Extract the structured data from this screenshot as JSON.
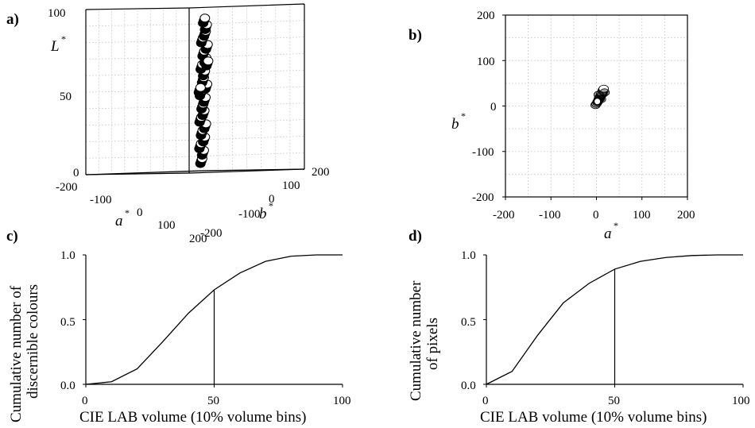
{
  "chart_data": [
    {
      "panel": "a)",
      "type": "scatter",
      "projection": "3d",
      "zlabel": "L",
      "xlabel": "a",
      "ylabel": "b",
      "label_superscript": "*",
      "zlim": [
        0,
        100
      ],
      "xlim": [
        -200,
        200
      ],
      "ylim": [
        -200,
        200
      ],
      "z_ticks": [
        "100",
        "50",
        "0"
      ],
      "x_ticks": [
        "-200",
        "-100",
        "0",
        "100",
        "200"
      ],
      "y_ticks": [
        "200",
        "100",
        "0",
        "-100",
        "-200"
      ],
      "grid": true,
      "points": [
        {
          "a": 5,
          "b": 15,
          "L": 5
        },
        {
          "a": 8,
          "b": 18,
          "L": 10
        },
        {
          "a": 4,
          "b": 12,
          "L": 14
        },
        {
          "a": 10,
          "b": 20,
          "L": 18
        },
        {
          "a": 6,
          "b": 16,
          "L": 22
        },
        {
          "a": 12,
          "b": 22,
          "L": 26
        },
        {
          "a": 3,
          "b": 14,
          "L": 30
        },
        {
          "a": 9,
          "b": 19,
          "L": 34
        },
        {
          "a": 7,
          "b": 17,
          "L": 38
        },
        {
          "a": 11,
          "b": 21,
          "L": 42
        },
        {
          "a": 5,
          "b": 13,
          "L": 46
        },
        {
          "a": 14,
          "b": 24,
          "L": 50
        },
        {
          "a": 8,
          "b": 18,
          "L": 54
        },
        {
          "a": 10,
          "b": 20,
          "L": 58
        },
        {
          "a": 6,
          "b": 15,
          "L": 62
        },
        {
          "a": 12,
          "b": 23,
          "L": 66
        },
        {
          "a": 9,
          "b": 19,
          "L": 70
        },
        {
          "a": 15,
          "b": 25,
          "L": 74
        },
        {
          "a": 7,
          "b": 16,
          "L": 78
        },
        {
          "a": 11,
          "b": 22,
          "L": 82
        },
        {
          "a": 13,
          "b": 24,
          "L": 86
        },
        {
          "a": 10,
          "b": 20,
          "L": 90
        },
        {
          "a": 4,
          "b": 10,
          "L": 48
        },
        {
          "a": 16,
          "b": 26,
          "L": 64
        }
      ]
    },
    {
      "panel": "b)",
      "type": "scatter",
      "xlabel": "a",
      "ylabel": "b",
      "label_superscript": "*",
      "xlim": [
        -200,
        200
      ],
      "ylim": [
        -200,
        200
      ],
      "x_ticks": [
        "-200",
        "-100",
        "0",
        "100",
        "200"
      ],
      "y_ticks": [
        "200",
        "100",
        "0",
        "-100",
        "-200"
      ],
      "grid": true,
      "points": [
        {
          "x": 0,
          "y": 5
        },
        {
          "x": 3,
          "y": 10
        },
        {
          "x": 5,
          "y": 15
        },
        {
          "x": 8,
          "y": 20
        },
        {
          "x": 10,
          "y": 25
        },
        {
          "x": 12,
          "y": 30
        },
        {
          "x": 14,
          "y": 35
        },
        {
          "x": 6,
          "y": 18
        },
        {
          "x": 9,
          "y": 22
        },
        {
          "x": 4,
          "y": 12
        },
        {
          "x": 11,
          "y": 28
        },
        {
          "x": 15,
          "y": 32
        },
        {
          "x": 2,
          "y": 8
        },
        {
          "x": 7,
          "y": 16
        },
        {
          "x": 13,
          "y": 26
        },
        {
          "x": 16,
          "y": 38
        },
        {
          "x": -2,
          "y": 2
        },
        {
          "x": 10,
          "y": 15
        },
        {
          "x": 5,
          "y": 25
        },
        {
          "x": 18,
          "y": 30
        }
      ]
    },
    {
      "panel": "c)",
      "type": "line",
      "xlabel": "CIE LAB volume (10% volume bins)",
      "ylabel_lines": [
        "Cumulative number of",
        "discernible colours"
      ],
      "xlim": [
        0,
        100
      ],
      "ylim": [
        0,
        1
      ],
      "x_ticks": [
        "0",
        "50",
        "100"
      ],
      "y_ticks": [
        "0.0",
        "0.5",
        "1.0"
      ],
      "x": [
        0,
        10,
        20,
        30,
        40,
        50,
        60,
        70,
        80,
        90,
        100
      ],
      "values": [
        0.0,
        0.02,
        0.12,
        0.33,
        0.55,
        0.73,
        0.86,
        0.95,
        0.99,
        1.0,
        1.0
      ],
      "vline_x": 50
    },
    {
      "panel": "d)",
      "type": "line",
      "xlabel": "CIE LAB volume (10% volume bins)",
      "ylabel_lines": [
        "Cumulative number",
        "of pixels"
      ],
      "xlim": [
        0,
        100
      ],
      "ylim": [
        0,
        1
      ],
      "x_ticks": [
        "0",
        "50",
        "100"
      ],
      "y_ticks": [
        "0.0",
        "0.5",
        "1.0"
      ],
      "x": [
        0,
        10,
        20,
        30,
        40,
        50,
        60,
        70,
        80,
        90,
        100
      ],
      "values": [
        0.0,
        0.1,
        0.38,
        0.63,
        0.78,
        0.89,
        0.95,
        0.98,
        0.995,
        1.0,
        1.0
      ],
      "vline_x": 50
    }
  ]
}
